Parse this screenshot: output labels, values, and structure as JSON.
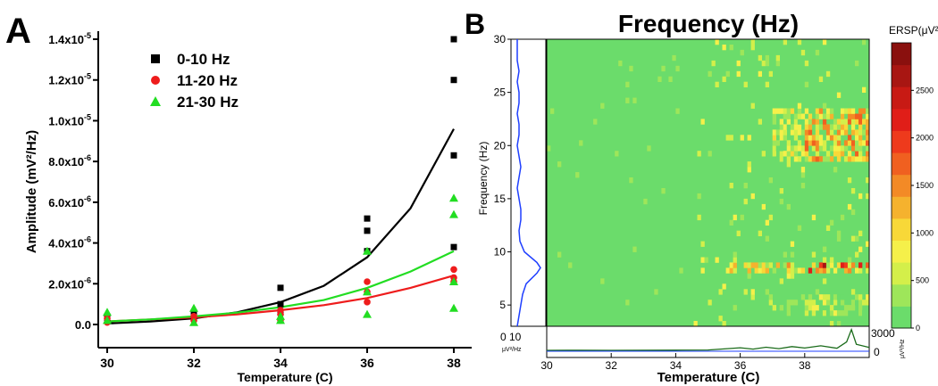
{
  "panels": {
    "a": "A",
    "b": "B"
  },
  "chart_data": [
    {
      "type": "scatter",
      "panel": "A",
      "xlabel": "Temperature (C)",
      "ylabel": "Amplitude (mV²/Hz)",
      "xlim": [
        30,
        38
      ],
      "ylim": [
        -8e-07,
        1.45e-05
      ],
      "x_ticks": [
        "30",
        "32",
        "34",
        "36",
        "38"
      ],
      "y_ticks": [
        {
          "value": 0,
          "label": "0.0"
        },
        {
          "value": 2e-06,
          "label": "2.0x10",
          "exp": "-6"
        },
        {
          "value": 4e-06,
          "label": "4.0x10",
          "exp": "-6"
        },
        {
          "value": 6e-06,
          "label": "6.0x10",
          "exp": "-6"
        },
        {
          "value": 8e-06,
          "label": "8.0x10",
          "exp": "-6"
        },
        {
          "value": 1e-05,
          "label": "1.0x10",
          "exp": "-5"
        },
        {
          "value": 1.2e-05,
          "label": "1.2x10",
          "exp": "-5"
        },
        {
          "value": 1.4e-05,
          "label": "1.4x10",
          "exp": "-5"
        }
      ],
      "legend_position": "top-left",
      "series": [
        {
          "name": "0-10 Hz",
          "color": "#000000",
          "marker": "square",
          "points": [
            [
              30,
              2e-07
            ],
            [
              30,
              4e-07
            ],
            [
              32,
              3e-07
            ],
            [
              32,
              5e-07
            ],
            [
              34,
              6e-07
            ],
            [
              34,
              1e-06
            ],
            [
              34,
              1.8e-06
            ],
            [
              36,
              5.2e-06
            ],
            [
              36,
              4.6e-06
            ],
            [
              36,
              3.6e-06
            ],
            [
              38,
              1.4e-05
            ],
            [
              38,
              1.2e-05
            ],
            [
              38,
              8.3e-06
            ],
            [
              38,
              3.8e-06
            ]
          ],
          "fit": [
            [
              30,
              5e-08
            ],
            [
              31,
              1.5e-07
            ],
            [
              32,
              3e-07
            ],
            [
              33,
              6e-07
            ],
            [
              34,
              1.1e-06
            ],
            [
              35,
              1.9e-06
            ],
            [
              36,
              3.3e-06
            ],
            [
              37,
              5.7e-06
            ],
            [
              38,
              9.6e-06
            ]
          ]
        },
        {
          "name": "11-20 Hz",
          "color": "#ee1c1c",
          "marker": "circle",
          "points": [
            [
              30,
              1e-07
            ],
            [
              30,
              3e-07
            ],
            [
              32,
              2e-07
            ],
            [
              32,
              4e-07
            ],
            [
              34,
              2e-07
            ],
            [
              34,
              5e-07
            ],
            [
              34,
              7e-07
            ],
            [
              36,
              2.1e-06
            ],
            [
              36,
              1.6e-06
            ],
            [
              36,
              1.1e-06
            ],
            [
              38,
              2.7e-06
            ],
            [
              38,
              2.3e-06
            ],
            [
              38,
              2.1e-06
            ]
          ],
          "fit": [
            [
              30,
              1.5e-07
            ],
            [
              31,
              2.5e-07
            ],
            [
              32,
              3.5e-07
            ],
            [
              33,
              5e-07
            ],
            [
              34,
              7e-07
            ],
            [
              35,
              9.5e-07
            ],
            [
              36,
              1.3e-06
            ],
            [
              37,
              1.8e-06
            ],
            [
              38,
              2.4e-06
            ]
          ]
        },
        {
          "name": "21-30 Hz",
          "color": "#22dd22",
          "marker": "triangle",
          "points": [
            [
              30,
              6e-07
            ],
            [
              30,
              2e-07
            ],
            [
              32,
              8e-07
            ],
            [
              32,
              1e-07
            ],
            [
              34,
              2e-07
            ],
            [
              34,
              4e-07
            ],
            [
              36,
              3.6e-06
            ],
            [
              36,
              1.6e-06
            ],
            [
              36,
              5e-07
            ],
            [
              38,
              6.2e-06
            ],
            [
              38,
              5.4e-06
            ],
            [
              38,
              2.1e-06
            ],
            [
              38,
              8e-07
            ]
          ],
          "fit": [
            [
              30,
              1.5e-07
            ],
            [
              31,
              2.5e-07
            ],
            [
              32,
              4e-07
            ],
            [
              33,
              5.8e-07
            ],
            [
              34,
              8.5e-07
            ],
            [
              35,
              1.2e-06
            ],
            [
              36,
              1.8e-06
            ],
            [
              37,
              2.6e-06
            ],
            [
              38,
              3.6e-06
            ]
          ]
        }
      ]
    },
    {
      "type": "heatmap",
      "panel": "B",
      "title": "Frequency (Hz)",
      "xlabel": "Temperature (C)",
      "ylabel": "Frequency (Hz)",
      "xlim": [
        30,
        40
      ],
      "ylim": [
        3,
        30
      ],
      "x_ticks": [
        "30",
        "32",
        "34",
        "36",
        "38"
      ],
      "y_ticks": [
        "5",
        "10",
        "15",
        "20",
        "25",
        "30"
      ],
      "colorbar": {
        "title": "ERSP(μV²/Hz)",
        "range": [
          0,
          3000
        ],
        "ticks": [
          "0",
          "500",
          "1000",
          "1500",
          "2000",
          "2500"
        ],
        "colors": [
          "#6bdc6b",
          "#9ee65a",
          "#d4ef4a",
          "#f5f04a",
          "#f8d838",
          "#f5b22e",
          "#f38a26",
          "#f06020",
          "#ee3a1c",
          "#e01e18",
          "#c81a14",
          "#a81612",
          "#8a100e"
        ]
      },
      "hot_bands": [
        {
          "freq": [
            7.8,
            9.2
          ],
          "temp": [
            35.5,
            40
          ],
          "peak": 2600
        },
        {
          "freq": [
            18.5,
            23.5
          ],
          "temp": [
            37,
            40
          ],
          "peak": 1800
        },
        {
          "freq": [
            4,
            6
          ],
          "temp": [
            37.5,
            40
          ],
          "peak": 900
        }
      ],
      "left_spectrum": {
        "xlabel_value": "0 10",
        "xlabel_unit": "μV²/Hz",
        "points": [
          [
            3,
            2
          ],
          [
            4,
            3
          ],
          [
            5,
            4
          ],
          [
            6,
            5
          ],
          [
            7,
            7
          ],
          [
            8,
            13
          ],
          [
            8.5,
            15
          ],
          [
            9,
            13
          ],
          [
            10,
            6
          ],
          [
            11,
            3.5
          ],
          [
            12,
            3
          ],
          [
            13,
            4
          ],
          [
            14,
            4
          ],
          [
            15,
            3
          ],
          [
            16,
            2
          ],
          [
            17,
            3
          ],
          [
            18,
            4
          ],
          [
            19,
            3
          ],
          [
            20,
            2
          ],
          [
            21,
            3
          ],
          [
            22,
            3
          ],
          [
            23,
            2
          ],
          [
            24,
            3
          ],
          [
            25,
            3
          ],
          [
            26,
            2
          ],
          [
            27,
            3
          ],
          [
            28,
            2
          ],
          [
            30,
            2
          ]
        ]
      },
      "bottom_trace": {
        "ticks": [
          "3000",
          "0"
        ],
        "unit": "μV²/Hz",
        "points": [
          [
            30,
            120
          ],
          [
            31,
            130
          ],
          [
            32,
            120
          ],
          [
            33,
            130
          ],
          [
            34,
            140
          ],
          [
            35,
            160
          ],
          [
            35.5,
            300
          ],
          [
            36,
            450
          ],
          [
            36.4,
            280
          ],
          [
            36.8,
            520
          ],
          [
            37.2,
            330
          ],
          [
            37.6,
            600
          ],
          [
            38,
            420
          ],
          [
            38.5,
            700
          ],
          [
            39,
            380
          ],
          [
            39.3,
            1200
          ],
          [
            39.45,
            2800
          ],
          [
            39.6,
            900
          ],
          [
            40,
            500
          ]
        ]
      }
    }
  ]
}
